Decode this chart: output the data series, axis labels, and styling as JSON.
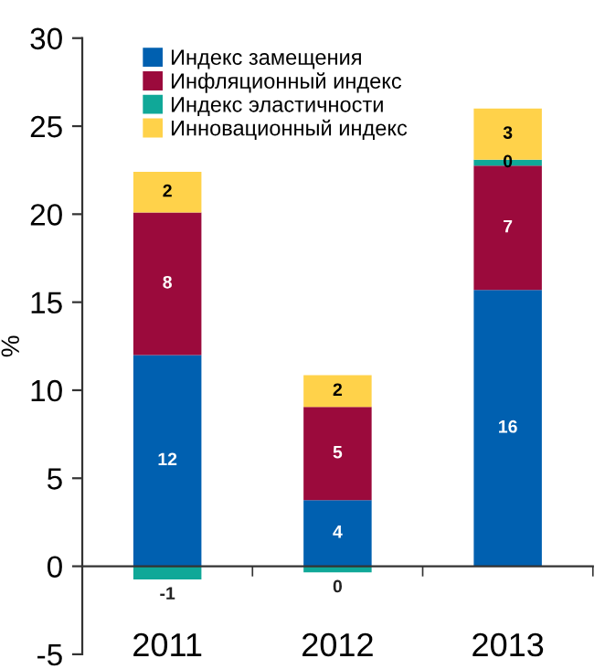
{
  "chart_data": {
    "type": "bar",
    "stacked": true,
    "ylabel": "%",
    "categories": [
      "2011",
      "2012",
      "2013"
    ],
    "series": [
      {
        "name": "Индекс замещения",
        "color": "#0060b0",
        "values": [
          12.0,
          3.75,
          15.7
        ],
        "value_labels": [
          "12",
          "4",
          "16"
        ]
      },
      {
        "name": "Инфляционный индекс",
        "color": "#9b0a3c",
        "values": [
          8.1,
          5.3,
          7.05
        ],
        "value_labels": [
          "8",
          "5",
          "7"
        ]
      },
      {
        "name": "Индекс эластичности",
        "color": "#10a898",
        "values": [
          -0.75,
          -0.35,
          0.35
        ],
        "value_labels": [
          "-1",
          "0",
          "0"
        ]
      },
      {
        "name": "Инновационный индекс",
        "color": "#ffd24a",
        "values": [
          2.3,
          1.8,
          2.9
        ],
        "value_labels": [
          "2",
          "2",
          "3"
        ]
      }
    ],
    "ylim": [
      -5,
      30
    ],
    "yticks": [
      -5,
      0,
      5,
      10,
      15,
      20,
      25,
      30
    ],
    "grid": false,
    "legend": "top left"
  }
}
